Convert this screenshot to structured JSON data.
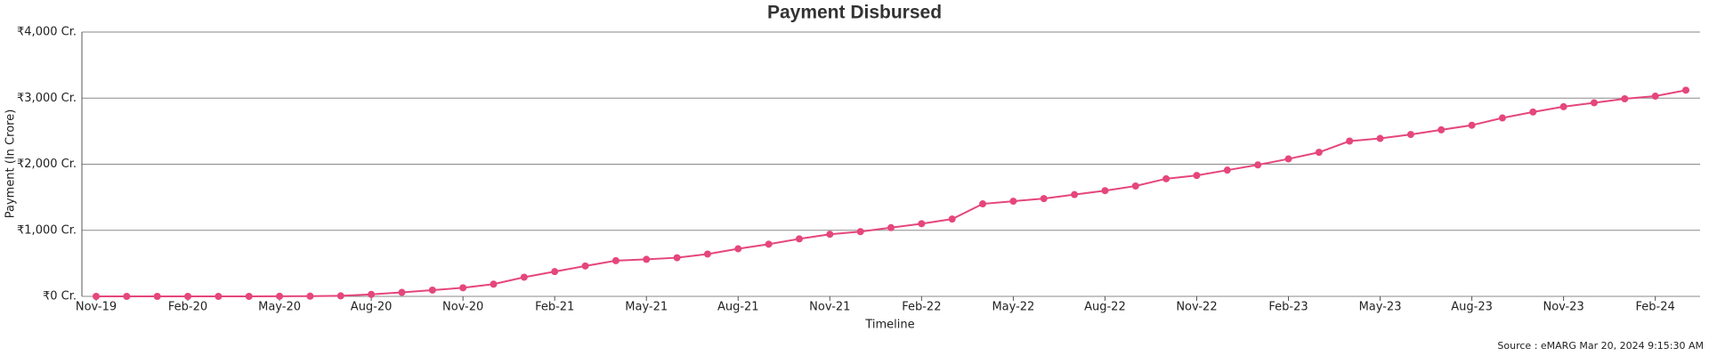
{
  "chart_data": {
    "type": "line",
    "title": "Payment Disbursed",
    "x_label": "Timeline",
    "y_label": "Payment (In Crore)",
    "source": "Source : eMARG Mar 20, 2024 9:15:30 AM",
    "categories": [
      "Nov-19",
      null,
      null,
      "Feb-20",
      null,
      null,
      "May-20",
      null,
      null,
      "Aug-20",
      null,
      null,
      "Nov-20",
      null,
      null,
      "Feb-21",
      null,
      null,
      "May-21",
      null,
      null,
      "Aug-21",
      null,
      null,
      "Nov-21",
      null,
      null,
      "Feb-22",
      null,
      null,
      "May-22",
      null,
      null,
      "Aug-22",
      null,
      null,
      "Nov-22",
      null,
      null,
      "Feb-23",
      null,
      null,
      "May-23",
      null,
      null,
      "Aug-23",
      null,
      null,
      "Nov-23",
      null,
      null,
      "Feb-24",
      null
    ],
    "series": [
      {
        "name": "Payment",
        "color": "#e5467c",
        "values": [
          0,
          0,
          0,
          0,
          0,
          0,
          2,
          3,
          8,
          30,
          60,
          95,
          130,
          185,
          290,
          375,
          460,
          540,
          560,
          585,
          640,
          720,
          790,
          870,
          940,
          980,
          1040,
          1100,
          1170,
          1400,
          1440,
          1480,
          1540,
          1600,
          1670,
          1780,
          1830,
          1910,
          1990,
          2080,
          2180,
          2350,
          2390,
          2450,
          2520,
          2590,
          2700,
          2790,
          2870,
          2930,
          2990,
          3030,
          3120
        ]
      }
    ],
    "ylim": [
      0,
      4000
    ],
    "yticks": [
      {
        "value": 0,
        "label": "₹0 Cr."
      },
      {
        "value": 1000,
        "label": "₹1,000 Cr."
      },
      {
        "value": 2000,
        "label": "₹2,000 Cr."
      },
      {
        "value": 3000,
        "label": "₹3,000 Cr."
      },
      {
        "value": 4000,
        "label": "₹4,000 Cr."
      }
    ],
    "grid": true
  }
}
